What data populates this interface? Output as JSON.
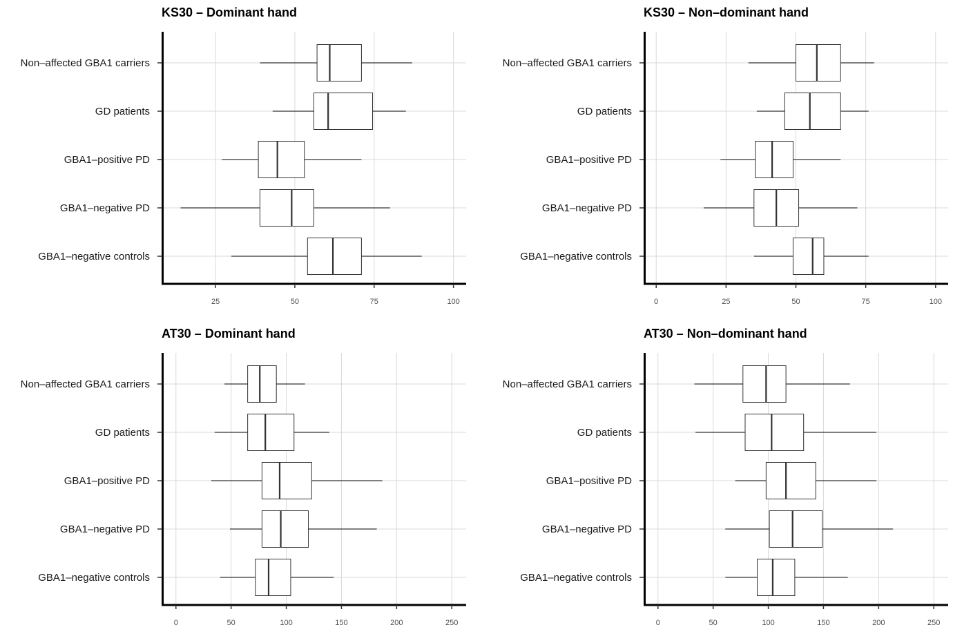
{
  "chart_data": [
    {
      "type": "boxplot",
      "title": "KS30 – Dominant hand",
      "categories": [
        "Non–affected GBA1 carriers",
        "GD patients",
        "GBA1–positive PD",
        "GBA1–negative PD",
        "GBA1–negative controls"
      ],
      "xlim": [
        8,
        104
      ],
      "xticks": [
        25,
        50,
        75,
        100
      ],
      "boxes": [
        {
          "whisker_low": 39,
          "q1": 57,
          "median": 61,
          "q3": 71,
          "whisker_high": 87
        },
        {
          "whisker_low": 43,
          "q1": 56,
          "median": 60.5,
          "q3": 74.5,
          "whisker_high": 85
        },
        {
          "whisker_low": 27,
          "q1": 38.5,
          "median": 44.5,
          "q3": 53,
          "whisker_high": 71
        },
        {
          "whisker_low": 14,
          "q1": 39,
          "median": 49,
          "q3": 56,
          "whisker_high": 80
        },
        {
          "whisker_low": 30,
          "q1": 54,
          "median": 62,
          "q3": 71,
          "whisker_high": 90
        }
      ]
    },
    {
      "type": "boxplot",
      "title": "KS30 – Non–dominant hand",
      "categories": [
        "Non–affected GBA1 carriers",
        "GD patients",
        "GBA1–positive PD",
        "GBA1–negative PD",
        "GBA1–negative controls"
      ],
      "xlim": [
        -4.5,
        104.5
      ],
      "xticks": [
        0,
        25,
        50,
        75,
        100
      ],
      "boxes": [
        {
          "whisker_low": 33,
          "q1": 50,
          "median": 57.5,
          "q3": 66,
          "whisker_high": 78
        },
        {
          "whisker_low": 36,
          "q1": 46,
          "median": 55,
          "q3": 66,
          "whisker_high": 76
        },
        {
          "whisker_low": 23,
          "q1": 35.5,
          "median": 41.5,
          "q3": 49,
          "whisker_high": 66
        },
        {
          "whisker_low": 17,
          "q1": 35,
          "median": 43,
          "q3": 51,
          "whisker_high": 72
        },
        {
          "whisker_low": 35,
          "q1": 49,
          "median": 56,
          "q3": 60,
          "whisker_high": 76
        }
      ]
    },
    {
      "type": "boxplot",
      "title": "AT30 – Dominant hand",
      "categories": [
        "Non–affected GBA1 carriers",
        "GD patients",
        "GBA1–positive PD",
        "GBA1–negative PD",
        "GBA1–negative controls"
      ],
      "xlim": [
        -13,
        263
      ],
      "xticks": [
        0,
        50,
        100,
        150,
        200,
        250
      ],
      "boxes": [
        {
          "whisker_low": 44,
          "q1": 65,
          "median": 76,
          "q3": 91,
          "whisker_high": 117
        },
        {
          "whisker_low": 35,
          "q1": 65,
          "median": 81,
          "q3": 107,
          "whisker_high": 139
        },
        {
          "whisker_low": 32,
          "q1": 78,
          "median": 94,
          "q3": 123,
          "whisker_high": 187
        },
        {
          "whisker_low": 49,
          "q1": 78,
          "median": 95,
          "q3": 120,
          "whisker_high": 182
        },
        {
          "whisker_low": 40,
          "q1": 72,
          "median": 84,
          "q3": 104,
          "whisker_high": 143
        }
      ]
    },
    {
      "type": "boxplot",
      "title": "AT30 – Non–dominant hand",
      "categories": [
        "Non–affected GBA1 carriers",
        "GD patients",
        "GBA1–positive PD",
        "GBA1–negative PD",
        "GBA1–negative controls"
      ],
      "xlim": [
        -13,
        263
      ],
      "xticks": [
        0,
        50,
        100,
        150,
        200,
        250
      ],
      "boxes": [
        {
          "whisker_low": 33,
          "q1": 77,
          "median": 98,
          "q3": 116,
          "whisker_high": 174
        },
        {
          "whisker_low": 34,
          "q1": 79,
          "median": 103,
          "q3": 132,
          "whisker_high": 198
        },
        {
          "whisker_low": 70,
          "q1": 98,
          "median": 116,
          "q3": 143,
          "whisker_high": 198
        },
        {
          "whisker_low": 61,
          "q1": 101,
          "median": 122,
          "q3": 149,
          "whisker_high": 213
        },
        {
          "whisker_low": 61,
          "q1": 90,
          "median": 104,
          "q3": 124,
          "whisker_high": 172
        }
      ]
    }
  ]
}
